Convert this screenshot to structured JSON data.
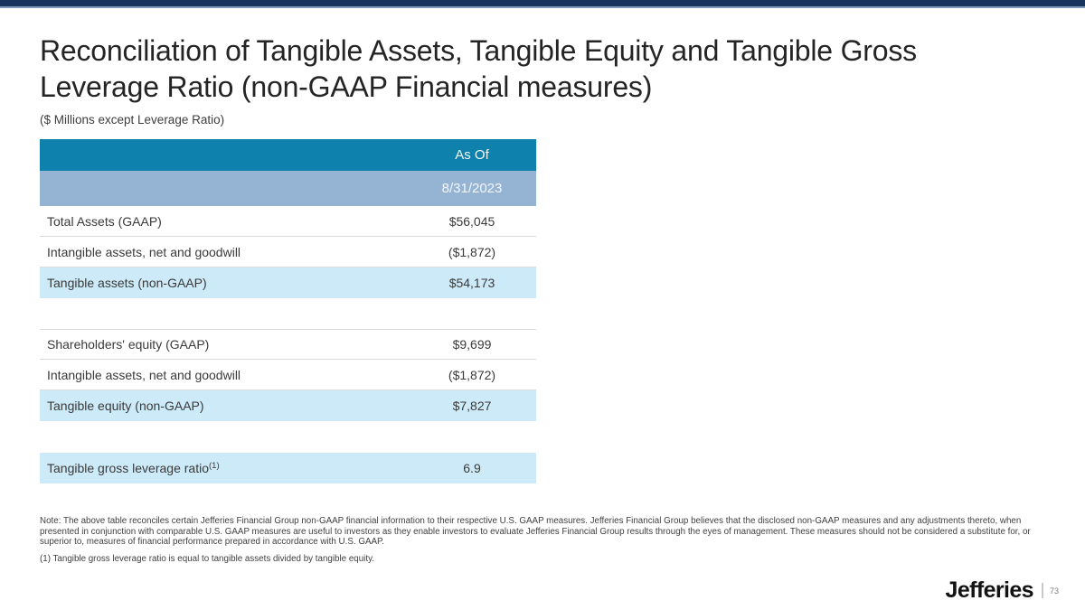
{
  "slide": {
    "title": "Reconciliation of Tangible Assets, Tangible Equity and Tangible Gross Leverage Ratio (non-GAAP Financial measures)",
    "subtitle": "($ Millions except Leverage Ratio)",
    "brand": "Jefferies",
    "page_number": "73"
  },
  "table": {
    "header_label": "As Of",
    "header_date": "8/31/2023",
    "rows": [
      {
        "label": "Total Assets (GAAP)",
        "value": "$56,045"
      },
      {
        "label": "Intangible assets, net and goodwill",
        "value": "($1,872)"
      },
      {
        "label": "Tangible assets (non-GAAP)",
        "value": "$54,173"
      },
      {
        "label": "Shareholders' equity (GAAP)",
        "value": "$9,699"
      },
      {
        "label": "Intangible assets, net and goodwill",
        "value": "($1,872)"
      },
      {
        "label": "Tangible equity (non-GAAP)",
        "value": "$7,827"
      },
      {
        "label": "Tangible gross leverage ratio",
        "label_sup": "(1)",
        "value": "6.9"
      }
    ]
  },
  "notes": {
    "note": "Note: The above table reconciles certain Jefferies Financial Group non-GAAP financial information to their respective U.S. GAAP measures. Jefferies Financial Group believes that the disclosed non-GAAP measures and any adjustments thereto, when presented in conjunction with comparable U.S. GAAP measures are useful to investors as they enable investors to evaluate Jefferies Financial Group results through the eyes of management. These measures should not be considered a substitute for, or superior to, measures of financial performance prepared in accordance with U.S. GAAP.",
    "footnote": "(1) Tangible gross leverage ratio is equal to tangible assets divided by tangible equity."
  },
  "colors": {
    "navy": "#17345c",
    "navy-light": "#7e98ba",
    "teal": "#0e81ad",
    "date-row": "#95b3d3",
    "highlight": "#cdeaf8",
    "border": "#dcdcdc"
  }
}
